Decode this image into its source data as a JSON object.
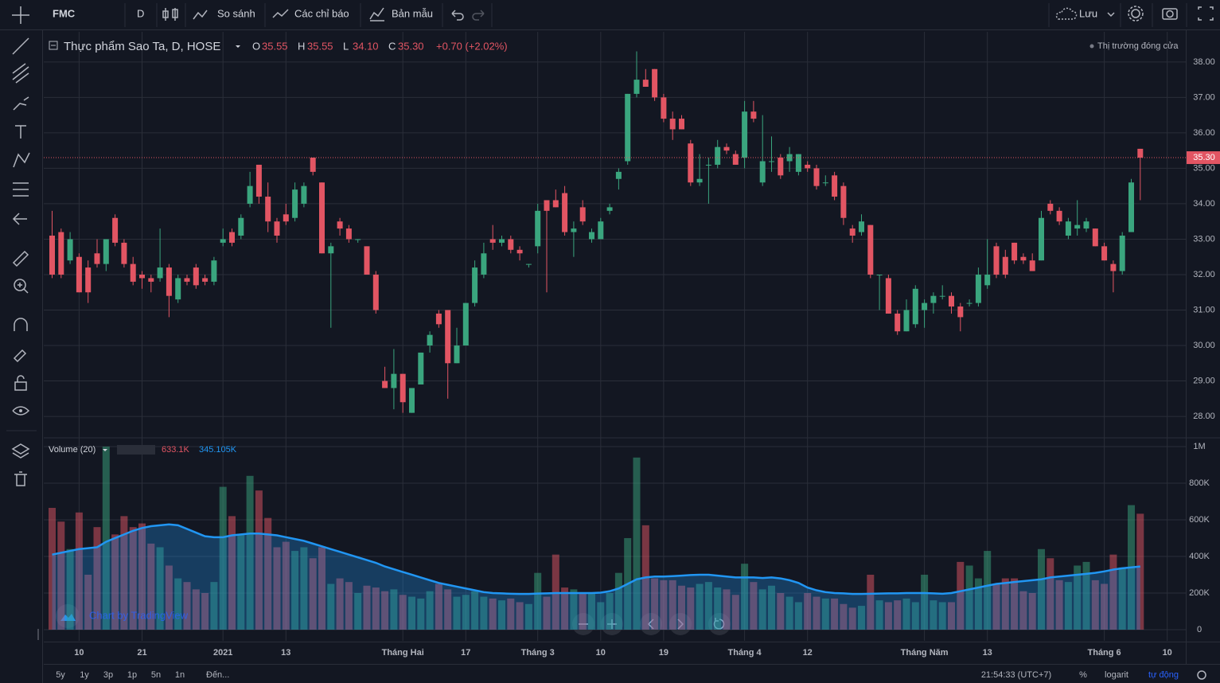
{
  "toolbar": {
    "symbol": "FMC",
    "interval": "D",
    "compare": "So sánh",
    "indicators": "Các chỉ báo",
    "templates": "Bản mẫu",
    "save": "Lưu"
  },
  "chart_data": [
    {
      "type": "candlestick",
      "title": "Thực phẩm Sao Ta, D, HOSE",
      "legend": {
        "fields": [
          {
            "key": "O",
            "value": "35.55"
          },
          {
            "key": "H",
            "value": "35.55"
          },
          {
            "key": "L",
            "value": "34.10"
          },
          {
            "key": "C",
            "value": "35.30"
          }
        ],
        "change": "+0.70 (+2.02%)"
      },
      "market_status": "Thị trường đóng cửa",
      "last_price_label": "35.30",
      "up_color": "#3aa57e",
      "down_color": "#e25563",
      "grid": true,
      "ylim": [
        27.44,
        38.85
      ],
      "yticks": [
        {
          "value": 28,
          "label": "28.00"
        },
        {
          "value": 29,
          "label": "29.00"
        },
        {
          "value": 30,
          "label": "30.00"
        },
        {
          "value": 31,
          "label": "31.00"
        },
        {
          "value": 32,
          "label": "32.00"
        },
        {
          "value": 33,
          "label": "33.00"
        },
        {
          "value": 34,
          "label": "34.00"
        },
        {
          "value": 35,
          "label": "35.00"
        },
        {
          "value": 36,
          "label": "36.00"
        },
        {
          "value": 37,
          "label": "37.00"
        },
        {
          "value": 38,
          "label": "38.00"
        }
      ],
      "categories": [
        null,
        null,
        null,
        "10",
        null,
        null,
        null,
        null,
        null,
        null,
        "21",
        null,
        null,
        null,
        null,
        null,
        null,
        null,
        null,
        "2021",
        null,
        null,
        null,
        null,
        null,
        null,
        "13",
        null,
        null,
        null,
        null,
        null,
        null,
        null,
        null,
        null,
        null,
        null,
        null,
        "Tháng Hai",
        null,
        null,
        null,
        null,
        null,
        null,
        "17",
        null,
        null,
        null,
        null,
        null,
        null,
        null,
        "Tháng 3",
        null,
        null,
        null,
        null,
        null,
        null,
        "10",
        null,
        null,
        null,
        null,
        null,
        null,
        "19",
        null,
        null,
        null,
        null,
        null,
        null,
        null,
        null,
        "Tháng 4",
        null,
        null,
        null,
        null,
        null,
        null,
        "12",
        null,
        null,
        null,
        null,
        null,
        null,
        null,
        null,
        null,
        null,
        null,
        null,
        "Tháng Năm",
        null,
        null,
        null,
        null,
        null,
        null,
        "13",
        null,
        null,
        null,
        null,
        null,
        null,
        null,
        null,
        null,
        null,
        null,
        null,
        "Tháng 6",
        null,
        null,
        null,
        null,
        null,
        null,
        "10"
      ],
      "ohlc": [
        [
          33.1,
          33.8,
          31.9,
          32.0
        ],
        [
          33.2,
          33.3,
          31.9,
          32.0
        ],
        [
          32.4,
          33.2,
          32.3,
          33.0
        ],
        [
          32.5,
          32.6,
          31.5,
          31.5
        ],
        [
          32.2,
          32.4,
          31.2,
          31.5
        ],
        [
          32.6,
          33.0,
          32.2,
          32.3
        ],
        [
          32.3,
          33.0,
          32.1,
          33.0
        ],
        [
          33.6,
          33.7,
          32.8,
          32.9
        ],
        [
          32.9,
          33.0,
          32.2,
          32.3
        ],
        [
          32.3,
          32.5,
          31.7,
          31.8
        ],
        [
          32.0,
          32.1,
          31.6,
          31.9
        ],
        [
          31.9,
          32.0,
          31.5,
          31.8
        ],
        [
          31.9,
          33.3,
          31.8,
          32.2
        ],
        [
          32.2,
          32.3,
          30.8,
          31.4
        ],
        [
          31.3,
          32.0,
          31.2,
          31.9
        ],
        [
          31.9,
          32.0,
          31.7,
          31.8
        ],
        [
          32.2,
          32.3,
          31.6,
          31.7
        ],
        [
          31.9,
          32.0,
          31.7,
          31.8
        ],
        [
          31.8,
          32.5,
          31.7,
          32.4
        ],
        [
          32.9,
          33.3,
          32.8,
          33.0
        ],
        [
          33.2,
          33.3,
          32.8,
          32.9
        ],
        [
          33.1,
          33.7,
          33.0,
          33.6
        ],
        [
          34.0,
          34.9,
          33.9,
          34.5
        ],
        [
          35.1,
          35.1,
          34.0,
          34.2
        ],
        [
          34.2,
          34.6,
          33.2,
          33.5
        ],
        [
          33.5,
          33.6,
          32.9,
          33.1
        ],
        [
          33.7,
          34.0,
          33.4,
          33.5
        ],
        [
          33.6,
          34.6,
          33.5,
          34.4
        ],
        [
          34.0,
          34.6,
          33.9,
          34.5
        ],
        [
          35.3,
          35.3,
          34.8,
          34.9
        ],
        [
          34.6,
          34.6,
          32.6,
          32.6
        ],
        [
          32.6,
          32.9,
          30.5,
          32.8
        ],
        [
          33.5,
          33.6,
          33.1,
          33.3
        ],
        [
          33.3,
          33.4,
          32.9,
          33.0
        ],
        [
          33.0,
          33.0,
          32.9,
          33.0
        ],
        [
          32.8,
          32.8,
          32.0,
          32.0
        ],
        [
          32.0,
          32.1,
          30.9,
          31.0
        ],
        [
          29.0,
          29.4,
          28.8,
          28.8
        ],
        [
          28.8,
          29.9,
          28.2,
          29.2
        ],
        [
          29.2,
          29.2,
          28.1,
          28.4
        ],
        [
          28.1,
          28.8,
          28.1,
          28.8
        ],
        [
          28.9,
          29.8,
          28.9,
          29.8
        ],
        [
          30.0,
          30.4,
          29.8,
          30.3
        ],
        [
          30.9,
          31.0,
          30.5,
          30.6
        ],
        [
          31.0,
          31.0,
          28.5,
          29.5
        ],
        [
          29.5,
          30.5,
          29.5,
          30.0
        ],
        [
          30.0,
          31.2,
          30.0,
          31.2
        ],
        [
          31.2,
          32.4,
          31.1,
          32.2
        ],
        [
          32.0,
          32.9,
          31.9,
          32.6
        ],
        [
          33.0,
          33.4,
          32.7,
          32.9
        ],
        [
          32.9,
          33.1,
          32.8,
          33.0
        ],
        [
          33.0,
          33.1,
          32.6,
          32.7
        ],
        [
          32.7,
          32.8,
          32.4,
          32.6
        ],
        [
          32.3,
          32.3,
          32.2,
          32.3
        ],
        [
          32.8,
          34.0,
          32.6,
          33.8
        ],
        [
          34.1,
          34.1,
          31.5,
          33.8
        ],
        [
          34.1,
          34.4,
          33.9,
          33.9
        ],
        [
          34.3,
          34.5,
          33.1,
          33.2
        ],
        [
          33.2,
          33.5,
          32.5,
          33.3
        ],
        [
          33.9,
          34.1,
          33.4,
          33.5
        ],
        [
          33.0,
          33.3,
          32.9,
          33.2
        ],
        [
          33.0,
          33.6,
          33.0,
          33.5
        ],
        [
          33.8,
          34.0,
          33.7,
          33.9
        ],
        [
          34.7,
          35.0,
          34.4,
          34.9
        ],
        [
          35.2,
          37.1,
          35.1,
          37.1
        ],
        [
          37.1,
          38.3,
          37.0,
          37.5
        ],
        [
          37.5,
          37.8,
          37.3,
          37.3
        ],
        [
          37.8,
          37.8,
          36.9,
          37.0
        ],
        [
          37.0,
          37.1,
          36.3,
          36.4
        ],
        [
          36.4,
          36.6,
          35.8,
          36.1
        ],
        [
          36.4,
          36.5,
          36.1,
          36.1
        ],
        [
          35.7,
          35.8,
          34.5,
          34.6
        ],
        [
          34.6,
          35.4,
          34.5,
          34.7
        ],
        [
          35.1,
          35.3,
          34.0,
          35.1
        ],
        [
          35.1,
          35.8,
          35.0,
          35.6
        ],
        [
          35.6,
          35.7,
          35.4,
          35.5
        ],
        [
          35.4,
          35.5,
          35.1,
          35.1
        ],
        [
          35.3,
          36.9,
          35.0,
          36.6
        ],
        [
          36.6,
          36.9,
          36.3,
          36.4
        ],
        [
          34.6,
          36.5,
          34.5,
          35.2
        ],
        [
          35.2,
          35.9,
          34.9,
          35.2
        ],
        [
          35.3,
          35.4,
          34.7,
          34.8
        ],
        [
          35.2,
          35.6,
          34.9,
          35.4
        ],
        [
          34.9,
          35.4,
          34.8,
          35.4
        ],
        [
          35.1,
          35.2,
          34.9,
          35.0
        ],
        [
          35.0,
          35.1,
          34.4,
          34.5
        ],
        [
          34.6,
          34.8,
          34.5,
          34.6
        ],
        [
          34.8,
          34.9,
          34.1,
          34.2
        ],
        [
          34.5,
          34.6,
          33.4,
          33.6
        ],
        [
          33.3,
          33.4,
          32.9,
          33.1
        ],
        [
          33.2,
          33.7,
          33.1,
          33.5
        ],
        [
          33.4,
          33.4,
          31.9,
          32.0
        ],
        [
          32.0,
          32.0,
          31.0,
          32.0
        ],
        [
          31.9,
          32.0,
          30.9,
          30.9
        ],
        [
          30.9,
          31.0,
          30.3,
          30.4
        ],
        [
          30.4,
          31.3,
          30.4,
          31.0
        ],
        [
          30.6,
          31.7,
          30.5,
          31.6
        ],
        [
          31.0,
          31.3,
          30.5,
          31.2
        ],
        [
          31.2,
          31.5,
          30.9,
          31.4
        ],
        [
          31.4,
          31.7,
          31.3,
          31.4
        ],
        [
          31.4,
          31.5,
          30.9,
          31.1
        ],
        [
          31.1,
          31.2,
          30.4,
          30.8
        ],
        [
          31.2,
          31.3,
          31.1,
          31.2
        ],
        [
          31.2,
          32.2,
          31.1,
          32.0
        ],
        [
          31.7,
          33.0,
          31.6,
          32.0
        ],
        [
          32.8,
          32.9,
          31.9,
          32.0
        ],
        [
          32.5,
          32.7,
          31.9,
          32.0
        ],
        [
          32.9,
          32.9,
          32.3,
          32.4
        ],
        [
          32.5,
          32.6,
          32.3,
          32.4
        ],
        [
          32.4,
          32.6,
          32.1,
          32.1
        ],
        [
          32.4,
          33.8,
          32.4,
          33.6
        ],
        [
          34.0,
          34.1,
          33.7,
          33.8
        ],
        [
          33.8,
          33.9,
          33.4,
          33.5
        ],
        [
          33.1,
          33.6,
          33.0,
          33.5
        ],
        [
          33.3,
          34.1,
          33.1,
          33.4
        ],
        [
          33.3,
          33.6,
          33.2,
          33.5
        ],
        [
          33.3,
          33.3,
          32.8,
          32.8
        ],
        [
          32.8,
          32.9,
          32.4,
          32.4
        ],
        [
          32.3,
          32.4,
          31.5,
          32.1
        ],
        [
          32.1,
          33.2,
          32.0,
          33.1
        ],
        [
          33.2,
          34.7,
          33.2,
          34.6
        ],
        [
          35.55,
          35.55,
          34.1,
          35.3
        ],
        null,
        null,
        null
      ]
    },
    {
      "type": "bar",
      "title": "Volume (20)",
      "watermark": "Chart by TradingView",
      "up_color": "#3aa57e",
      "down_color": "#e25563",
      "ylim": [
        -61000,
        1039000
      ],
      "yticks": [
        0,
        {
          "value": 200000,
          "label": "200K"
        },
        {
          "value": 400000,
          "label": "400K"
        },
        {
          "value": 600000,
          "label": "600K"
        },
        {
          "value": 800000,
          "label": "800K"
        },
        {
          "value": 1000000,
          "label": "1M"
        }
      ],
      "series": [
        {
          "last_label": "633.1K",
          "values": [
            665000,
            590000,
            440000,
            640000,
            300000,
            560000,
            1000000,
            520000,
            620000,
            560000,
            580000,
            470000,
            450000,
            350000,
            280000,
            260000,
            220000,
            200000,
            260000,
            780000,
            620000,
            520000,
            840000,
            760000,
            610000,
            450000,
            480000,
            430000,
            450000,
            390000,
            450000,
            250000,
            280000,
            260000,
            200000,
            240000,
            230000,
            210000,
            220000,
            190000,
            180000,
            170000,
            210000,
            250000,
            220000,
            180000,
            190000,
            210000,
            180000,
            170000,
            160000,
            170000,
            150000,
            140000,
            310000,
            180000,
            410000,
            230000,
            220000,
            200000,
            200000,
            150000,
            200000,
            310000,
            500000,
            940000,
            570000,
            280000,
            270000,
            270000,
            240000,
            230000,
            250000,
            260000,
            230000,
            220000,
            190000,
            360000,
            260000,
            220000,
            240000,
            200000,
            180000,
            150000,
            200000,
            180000,
            170000,
            170000,
            140000,
            120000,
            130000,
            300000,
            160000,
            150000,
            160000,
            170000,
            150000,
            300000,
            160000,
            150000,
            150000,
            370000,
            350000,
            280000,
            430000,
            250000,
            280000,
            280000,
            210000,
            200000,
            440000,
            390000,
            270000,
            260000,
            350000,
            370000,
            270000,
            250000,
            410000,
            340000,
            680000,
            633100,
            null,
            null,
            null
          ]
        },
        {
          "color": "#2196f3",
          "last_label": "345.105K",
          "values": [
            410000,
            420000,
            430000,
            440000,
            445000,
            450000,
            480000,
            500000,
            520000,
            540000,
            555000,
            565000,
            570000,
            575000,
            570000,
            550000,
            530000,
            510000,
            505000,
            505000,
            515000,
            520000,
            525000,
            525000,
            520000,
            515000,
            505000,
            495000,
            485000,
            470000,
            455000,
            440000,
            425000,
            410000,
            395000,
            380000,
            365000,
            345000,
            330000,
            315000,
            300000,
            285000,
            270000,
            255000,
            245000,
            235000,
            225000,
            215000,
            205000,
            200000,
            198000,
            196000,
            195000,
            195000,
            197000,
            198000,
            200000,
            200000,
            200000,
            200000,
            200000,
            202000,
            210000,
            225000,
            250000,
            275000,
            285000,
            290000,
            290000,
            292000,
            295000,
            298000,
            300000,
            300000,
            295000,
            290000,
            285000,
            285000,
            285000,
            282000,
            285000,
            280000,
            270000,
            255000,
            230000,
            215000,
            205000,
            200000,
            198000,
            195000,
            195000,
            196000,
            197000,
            198000,
            198000,
            200000,
            200000,
            200000,
            198000,
            196000,
            200000,
            210000,
            220000,
            230000,
            240000,
            250000,
            255000,
            260000,
            265000,
            270000,
            275000,
            285000,
            290000,
            295000,
            300000,
            305000,
            310000,
            318000,
            328000,
            335000,
            340000,
            345105,
            null,
            null,
            null
          ]
        }
      ]
    }
  ],
  "bottom_bar": {
    "ranges": [
      "5y",
      "1y",
      "3p",
      "1p",
      "5n",
      "1n"
    ],
    "goto": "Đến...",
    "clock": "21:54:33 (UTC+7)",
    "percent": "%",
    "log": "logarit",
    "auto": "tự động"
  }
}
